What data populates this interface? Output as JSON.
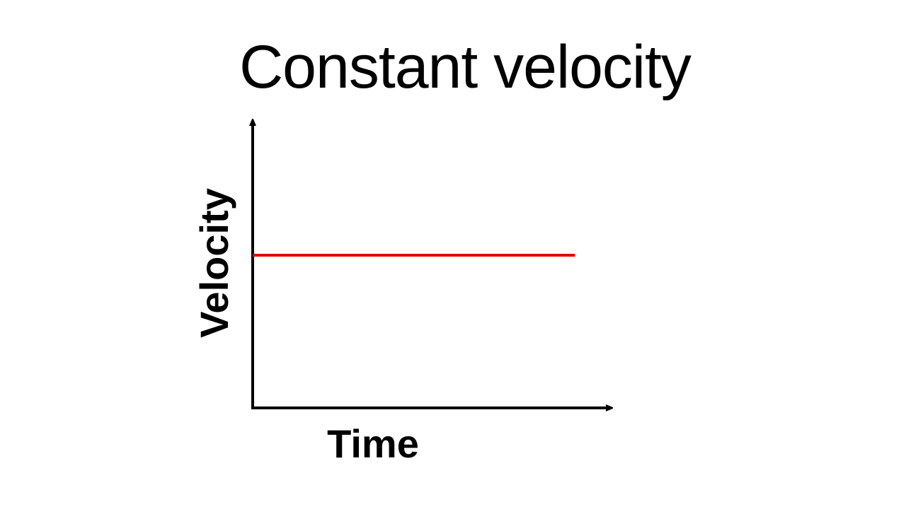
{
  "slide": {
    "title": "Constant velocity"
  },
  "chart_data": {
    "type": "line",
    "title": "Constant velocity",
    "xlabel": "Time",
    "ylabel": "Velocity",
    "grid": false,
    "x": [
      0,
      1
    ],
    "series": [
      {
        "values": [
          0.5,
          0.5
        ],
        "color": "#e00000"
      }
    ],
    "xlim": [
      0,
      1.12
    ],
    "ylim": [
      0,
      1
    ],
    "axis_color": "#000000"
  }
}
